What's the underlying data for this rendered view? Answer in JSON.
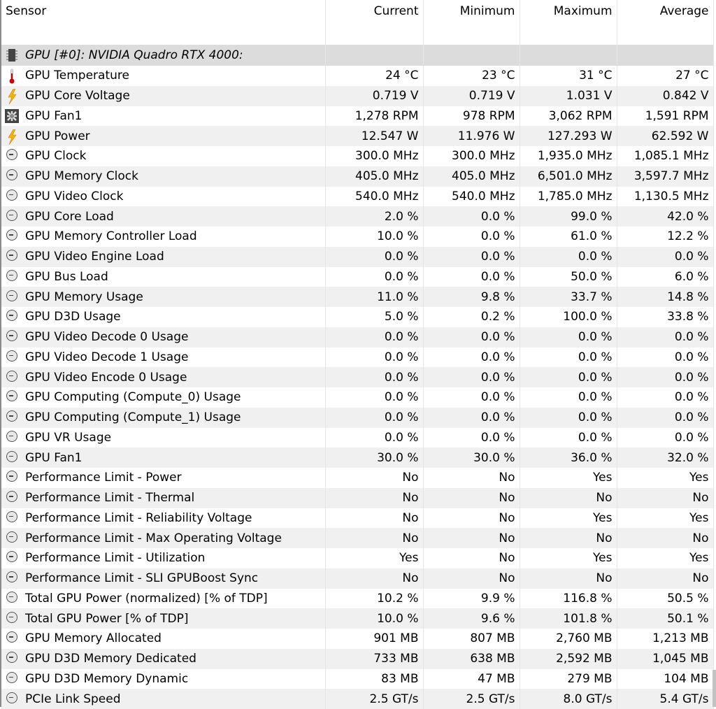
{
  "columns": [
    "Sensor",
    "Current",
    "Minimum",
    "Maximum",
    "Average"
  ],
  "group": {
    "label": "GPU [#0]: NVIDIA Quadro RTX 4000:",
    "icon": "chip-icon"
  },
  "rows": [
    {
      "icon": "thermometer-icon",
      "name": "GPU Temperature",
      "current": "24 °C",
      "min": "23 °C",
      "max": "31 °C",
      "avg": "27 °C"
    },
    {
      "icon": "lightning-icon",
      "name": "GPU Core Voltage",
      "current": "0.719 V",
      "min": "0.719 V",
      "max": "1.031 V",
      "avg": "0.842 V"
    },
    {
      "icon": "fan-icon",
      "name": "GPU Fan1",
      "current": "1,278 RPM",
      "min": "978 RPM",
      "max": "3,062 RPM",
      "avg": "1,591 RPM"
    },
    {
      "icon": "lightning-icon",
      "name": "GPU Power",
      "current": "12.547 W",
      "min": "11.976 W",
      "max": "127.293 W",
      "avg": "62.592 W"
    },
    {
      "icon": "clock-icon",
      "name": "GPU Clock",
      "current": "300.0 MHz",
      "min": "300.0 MHz",
      "max": "1,935.0 MHz",
      "avg": "1,085.1 MHz"
    },
    {
      "icon": "clock-icon",
      "name": "GPU Memory Clock",
      "current": "405.0 MHz",
      "min": "405.0 MHz",
      "max": "6,501.0 MHz",
      "avg": "3,597.7 MHz"
    },
    {
      "icon": "clock-icon",
      "name": "GPU Video Clock",
      "current": "540.0 MHz",
      "min": "540.0 MHz",
      "max": "1,785.0 MHz",
      "avg": "1,130.5 MHz"
    },
    {
      "icon": "clock-icon",
      "name": "GPU Core Load",
      "current": "2.0 %",
      "min": "0.0 %",
      "max": "99.0 %",
      "avg": "42.0 %"
    },
    {
      "icon": "clock-icon",
      "name": "GPU Memory Controller Load",
      "current": "10.0 %",
      "min": "0.0 %",
      "max": "61.0 %",
      "avg": "12.2 %"
    },
    {
      "icon": "clock-icon",
      "name": "GPU Video Engine Load",
      "current": "0.0 %",
      "min": "0.0 %",
      "max": "0.0 %",
      "avg": "0.0 %"
    },
    {
      "icon": "clock-icon",
      "name": "GPU Bus Load",
      "current": "0.0 %",
      "min": "0.0 %",
      "max": "50.0 %",
      "avg": "6.0 %"
    },
    {
      "icon": "clock-icon",
      "name": "GPU Memory Usage",
      "current": "11.0 %",
      "min": "9.8 %",
      "max": "33.7 %",
      "avg": "14.8 %"
    },
    {
      "icon": "clock-icon",
      "name": "GPU D3D Usage",
      "current": "5.0 %",
      "min": "0.2 %",
      "max": "100.0 %",
      "avg": "33.8 %"
    },
    {
      "icon": "clock-icon",
      "name": "GPU Video Decode 0 Usage",
      "current": "0.0 %",
      "min": "0.0 %",
      "max": "0.0 %",
      "avg": "0.0 %"
    },
    {
      "icon": "clock-icon",
      "name": "GPU Video Decode 1 Usage",
      "current": "0.0 %",
      "min": "0.0 %",
      "max": "0.0 %",
      "avg": "0.0 %"
    },
    {
      "icon": "clock-icon",
      "name": "GPU Video Encode 0 Usage",
      "current": "0.0 %",
      "min": "0.0 %",
      "max": "0.0 %",
      "avg": "0.0 %"
    },
    {
      "icon": "clock-icon",
      "name": "GPU Computing (Compute_0) Usage",
      "current": "0.0 %",
      "min": "0.0 %",
      "max": "0.0 %",
      "avg": "0.0 %"
    },
    {
      "icon": "clock-icon",
      "name": "GPU Computing (Compute_1) Usage",
      "current": "0.0 %",
      "min": "0.0 %",
      "max": "0.0 %",
      "avg": "0.0 %"
    },
    {
      "icon": "clock-icon",
      "name": "GPU VR Usage",
      "current": "0.0 %",
      "min": "0.0 %",
      "max": "0.0 %",
      "avg": "0.0 %"
    },
    {
      "icon": "clock-icon",
      "name": "GPU Fan1",
      "current": "30.0 %",
      "min": "30.0 %",
      "max": "36.0 %",
      "avg": "32.0 %"
    },
    {
      "icon": "clock-icon",
      "name": "Performance Limit - Power",
      "current": "No",
      "min": "No",
      "max": "Yes",
      "avg": "Yes"
    },
    {
      "icon": "clock-icon",
      "name": "Performance Limit - Thermal",
      "current": "No",
      "min": "No",
      "max": "No",
      "avg": "No"
    },
    {
      "icon": "clock-icon",
      "name": "Performance Limit - Reliability Voltage",
      "current": "No",
      "min": "No",
      "max": "Yes",
      "avg": "Yes"
    },
    {
      "icon": "clock-icon",
      "name": "Performance Limit - Max Operating Voltage",
      "current": "No",
      "min": "No",
      "max": "No",
      "avg": "No"
    },
    {
      "icon": "clock-icon",
      "name": "Performance Limit - Utilization",
      "current": "Yes",
      "min": "No",
      "max": "Yes",
      "avg": "Yes"
    },
    {
      "icon": "clock-icon",
      "name": "Performance Limit - SLI GPUBoost Sync",
      "current": "No",
      "min": "No",
      "max": "No",
      "avg": "No"
    },
    {
      "icon": "clock-icon",
      "name": "Total GPU Power (normalized) [% of TDP]",
      "current": "10.2 %",
      "min": "9.9 %",
      "max": "116.8 %",
      "avg": "50.5 %"
    },
    {
      "icon": "clock-icon",
      "name": "Total GPU Power [% of TDP]",
      "current": "10.0 %",
      "min": "9.6 %",
      "max": "101.8 %",
      "avg": "50.1 %"
    },
    {
      "icon": "clock-icon",
      "name": "GPU Memory Allocated",
      "current": "901 MB",
      "min": "807 MB",
      "max": "2,760 MB",
      "avg": "1,213 MB"
    },
    {
      "icon": "clock-icon",
      "name": "GPU D3D Memory Dedicated",
      "current": "733 MB",
      "min": "638 MB",
      "max": "2,592 MB",
      "avg": "1,045 MB"
    },
    {
      "icon": "clock-icon",
      "name": "GPU D3D Memory Dynamic",
      "current": "83 MB",
      "min": "47 MB",
      "max": "279 MB",
      "avg": "104 MB"
    },
    {
      "icon": "clock-icon",
      "name": "PCIe Link Speed",
      "current": "2.5 GT/s",
      "min": "2.5 GT/s",
      "max": "8.0 GT/s",
      "avg": "5.4 GT/s"
    }
  ]
}
